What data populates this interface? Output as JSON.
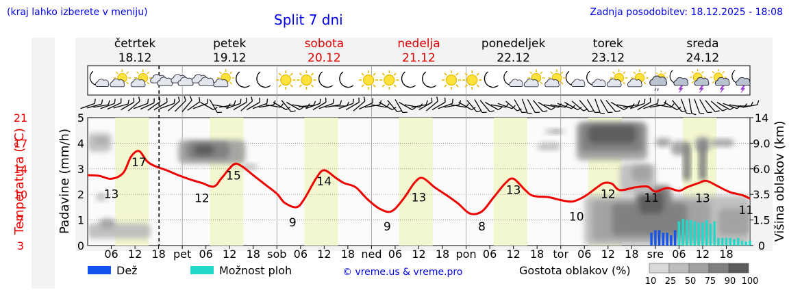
{
  "header": {
    "hint": "(kraj lahko izberete v meniju)",
    "title": "Split 7 dni",
    "updated": "Zadnja posodobitev: 18.12.2025 - 18:08"
  },
  "colors": {
    "weekday": "#000000",
    "weekend": "#dd0000",
    "temp_line": "#ee0000",
    "rain": "#1155ee",
    "shower": "#22d8c8",
    "daylight": "#f3f7cf"
  },
  "days": [
    {
      "name": "četrtek",
      "date": "18.12",
      "weekend": false
    },
    {
      "name": "petek",
      "date": "19.12",
      "weekend": false
    },
    {
      "name": "sobota",
      "date": "20.12",
      "weekend": true
    },
    {
      "name": "nedelja",
      "date": "21.12",
      "weekend": true
    },
    {
      "name": "ponedeljek",
      "date": "22.12",
      "weekend": false
    },
    {
      "name": "torek",
      "date": "23.12",
      "weekend": false
    },
    {
      "name": "sreda",
      "date": "24.12",
      "weekend": false
    }
  ],
  "icons": [
    "moon-cloud",
    "sun-cloud",
    "sun-cloud",
    "cloudy",
    "cloudy",
    "cloudy",
    "sun-cloud",
    "moon",
    "moon",
    "sun",
    "sun",
    "moon",
    "moon",
    "sun",
    "sun",
    "moon",
    "moon",
    "sun",
    "sun",
    "moon",
    "moon-cloud",
    "sun-cloud",
    "sun-cloud",
    "moon-cloud",
    "moon-cloud",
    "sun-cloud",
    "sun-cloud",
    "rain-cloud",
    "storm-moon",
    "storm-sun",
    "storm-sun",
    "storm-moon"
  ],
  "chart_data": {
    "type": "line",
    "title": "Split 7 dni",
    "x_unit": "hours since 18.12 00:00",
    "x_range": [
      0,
      168
    ],
    "now_hour": 18.1,
    "xticks": [
      {
        "h": 6,
        "label": "06"
      },
      {
        "h": 12,
        "label": "12"
      },
      {
        "h": 18,
        "label": "18"
      },
      {
        "h": 24,
        "label": "pet"
      },
      {
        "h": 30,
        "label": "06"
      },
      {
        "h": 36,
        "label": "12"
      },
      {
        "h": 42,
        "label": "18"
      },
      {
        "h": 48,
        "label": "sob"
      },
      {
        "h": 54,
        "label": "06"
      },
      {
        "h": 60,
        "label": "12"
      },
      {
        "h": 66,
        "label": "18"
      },
      {
        "h": 72,
        "label": "ned"
      },
      {
        "h": 78,
        "label": "06"
      },
      {
        "h": 84,
        "label": "12"
      },
      {
        "h": 90,
        "label": "18"
      },
      {
        "h": 96,
        "label": "pon"
      },
      {
        "h": 102,
        "label": "06"
      },
      {
        "h": 108,
        "label": "12"
      },
      {
        "h": 114,
        "label": "18"
      },
      {
        "h": 120,
        "label": "tor"
      },
      {
        "h": 126,
        "label": "06"
      },
      {
        "h": 132,
        "label": "12"
      },
      {
        "h": 138,
        "label": "18"
      },
      {
        "h": 144,
        "label": "sre"
      },
      {
        "h": 150,
        "label": "06"
      },
      {
        "h": 156,
        "label": "12"
      },
      {
        "h": 162,
        "label": "18"
      }
    ],
    "daylight_hours": [
      [
        7,
        15.5
      ],
      [
        31,
        39.5
      ],
      [
        55,
        63.5
      ],
      [
        79,
        87.5
      ],
      [
        103,
        111.5
      ],
      [
        127,
        135.5
      ],
      [
        151,
        159.5
      ]
    ],
    "temperature": {
      "label": "Temperatura (°C)",
      "ticks": [
        "3",
        "7",
        "10",
        "14",
        "17",
        "21"
      ],
      "range": [
        3,
        21
      ],
      "points": [
        [
          0,
          12.9
        ],
        [
          3,
          12.8
        ],
        [
          6,
          12.4
        ],
        [
          9,
          13.2
        ],
        [
          11,
          15.5
        ],
        [
          13,
          16.3
        ],
        [
          15,
          14.9
        ],
        [
          17,
          14.2
        ],
        [
          20,
          13.6
        ],
        [
          23,
          12.9
        ],
        [
          26,
          12.3
        ],
        [
          29,
          11.8
        ],
        [
          32,
          11.3
        ],
        [
          34,
          12.5
        ],
        [
          37,
          14.4
        ],
        [
          39,
          14.2
        ],
        [
          42,
          12.9
        ],
        [
          45,
          11.6
        ],
        [
          48,
          10.3
        ],
        [
          50,
          9.0
        ],
        [
          53,
          8.4
        ],
        [
          55,
          9.6
        ],
        [
          58,
          12.5
        ],
        [
          60,
          13.6
        ],
        [
          63,
          12.5
        ],
        [
          65,
          11.8
        ],
        [
          68,
          11.2
        ],
        [
          71,
          9.5
        ],
        [
          74,
          8.2
        ],
        [
          77,
          7.8
        ],
        [
          80,
          9.5
        ],
        [
          83,
          11.9
        ],
        [
          85,
          12.5
        ],
        [
          88,
          11.2
        ],
        [
          91,
          10.1
        ],
        [
          94,
          8.9
        ],
        [
          97,
          7.5
        ],
        [
          100,
          7.8
        ],
        [
          103,
          9.8
        ],
        [
          106,
          11.8
        ],
        [
          108,
          12.4
        ],
        [
          111,
          10.8
        ],
        [
          113,
          10.0
        ],
        [
          117,
          9.8
        ],
        [
          120,
          9.4
        ],
        [
          123,
          9.2
        ],
        [
          126,
          9.9
        ],
        [
          129,
          11.1
        ],
        [
          131,
          11.8
        ],
        [
          133,
          11.7
        ],
        [
          135,
          10.8
        ],
        [
          139,
          11.2
        ],
        [
          142,
          11.3
        ],
        [
          144,
          10.6
        ],
        [
          147,
          11.1
        ],
        [
          150,
          10.7
        ],
        [
          152,
          11.2
        ],
        [
          155,
          11.8
        ],
        [
          157,
          12.1
        ],
        [
          160,
          11.3
        ],
        [
          163,
          10.5
        ],
        [
          166,
          10.1
        ],
        [
          168,
          9.6
        ]
      ],
      "labels": [
        {
          "h": 6,
          "value": "13"
        },
        {
          "h": 13,
          "value": "17"
        },
        {
          "h": 29,
          "value": "12"
        },
        {
          "h": 37,
          "value": "15"
        },
        {
          "h": 52,
          "value": "9"
        },
        {
          "h": 60,
          "value": "14"
        },
        {
          "h": 76,
          "value": "9"
        },
        {
          "h": 84,
          "value": "13"
        },
        {
          "h": 100,
          "value": "8"
        },
        {
          "h": 108,
          "value": "13"
        },
        {
          "h": 124,
          "value": "10"
        },
        {
          "h": 132,
          "value": "12"
        },
        {
          "h": 143,
          "value": "11"
        },
        {
          "h": 156,
          "value": "13"
        },
        {
          "h": 167,
          "value": "11"
        }
      ]
    },
    "precipitation": {
      "label": "Padavine (mm/h)",
      "ticks": [
        "0",
        "1",
        "2",
        "3",
        "4",
        "5"
      ],
      "range": [
        0,
        5
      ],
      "rain": [
        [
          143,
          0.5
        ],
        [
          144,
          0.6
        ],
        [
          145,
          0.6
        ],
        [
          146,
          0.5
        ],
        [
          147,
          0.5
        ],
        [
          148,
          0.4
        ],
        [
          149,
          0.6
        ]
      ],
      "showers": [
        [
          150,
          0.95
        ],
        [
          151,
          1.05
        ],
        [
          152,
          1.0
        ],
        [
          153,
          1.0
        ],
        [
          154,
          0.95
        ],
        [
          155,
          0.9
        ],
        [
          156,
          0.9
        ],
        [
          157,
          1.0
        ],
        [
          158,
          0.85
        ],
        [
          159,
          0.95
        ],
        [
          160,
          0.3
        ],
        [
          161,
          0.3
        ],
        [
          162,
          0.3
        ],
        [
          163,
          0.3
        ],
        [
          164,
          0.25
        ],
        [
          165,
          0.3
        ],
        [
          166,
          0.2
        ],
        [
          167,
          0.15
        ],
        [
          168,
          0.2
        ]
      ]
    },
    "cloud_height": {
      "label": "Višina oblakov (km)",
      "ticks": [
        "0",
        "1.5",
        "3.5",
        "6.0",
        "9.0",
        "14"
      ]
    },
    "cloud_density": {
      "label": "Gostota oblakov (%)",
      "levels": [
        "10",
        "25",
        "50",
        "75",
        "90",
        "100"
      ],
      "colors": [
        "#d8d8d8",
        "#bdbdbd",
        "#a2a2a2",
        "#808080",
        "#5c5c5c"
      ],
      "blobs": [
        {
          "h": [
            0,
            6
          ],
          "km": [
            8.0,
            11.0
          ],
          "level": 1
        },
        {
          "h": [
            2,
            5
          ],
          "km": [
            9.0,
            10.0
          ],
          "level": 2
        },
        {
          "h": [
            23,
            40
          ],
          "km": [
            6.6,
            9.6
          ],
          "level": 2
        },
        {
          "h": [
            25,
            36
          ],
          "km": [
            7.2,
            9.2
          ],
          "level": 3
        },
        {
          "h": [
            27,
            32
          ],
          "km": [
            7.6,
            8.8
          ],
          "level": 4
        },
        {
          "h": [
            39,
            43
          ],
          "km": [
            5.9,
            6.6
          ],
          "level": 1
        },
        {
          "h": [
            0,
            16
          ],
          "km": [
            0.4,
            1.3
          ],
          "level": 1
        },
        {
          "h": [
            3,
            7
          ],
          "km": [
            1.0,
            1.6
          ],
          "level": 2
        },
        {
          "h": [
            2,
            5
          ],
          "km": [
            3.0,
            3.6
          ],
          "level": 1
        },
        {
          "h": [
            116,
            121
          ],
          "km": [
            10.8,
            11.8
          ],
          "level": 1
        },
        {
          "h": [
            118,
            120
          ],
          "km": [
            11.0,
            11.6
          ],
          "level": 2
        },
        {
          "h": [
            114,
            120
          ],
          "km": [
            8.2,
            9.1
          ],
          "level": 1
        },
        {
          "h": [
            124,
            142
          ],
          "km": [
            7.0,
            13.2
          ],
          "level": 2
        },
        {
          "h": [
            125,
            141
          ],
          "km": [
            8.0,
            12.8
          ],
          "level": 3
        },
        {
          "h": [
            127,
            139
          ],
          "km": [
            9.0,
            12.4
          ],
          "level": 4
        },
        {
          "h": [
            144,
            148
          ],
          "km": [
            8.6,
            10.0
          ],
          "level": 2
        },
        {
          "h": [
            148,
            152
          ],
          "km": [
            7.6,
            9.4
          ],
          "level": 2
        },
        {
          "h": [
            151,
            153
          ],
          "km": [
            4.8,
            9.2
          ],
          "level": 3
        },
        {
          "h": [
            154,
            158
          ],
          "km": [
            8.0,
            10.2
          ],
          "level": 2
        },
        {
          "h": [
            155,
            157
          ],
          "km": [
            4.8,
            9.6
          ],
          "level": 3
        },
        {
          "h": [
            158,
            164
          ],
          "km": [
            8.6,
            9.8
          ],
          "level": 2
        },
        {
          "h": [
            126,
            168
          ],
          "km": [
            0.0,
            3.4
          ],
          "level": 1
        },
        {
          "h": [
            128,
            158
          ],
          "km": [
            0.3,
            3.0
          ],
          "level": 2
        },
        {
          "h": [
            133,
            152
          ],
          "km": [
            0.6,
            2.8
          ],
          "level": 3
        },
        {
          "h": [
            139,
            148
          ],
          "km": [
            1.2,
            4.4
          ],
          "level": 3
        },
        {
          "h": [
            140,
            146
          ],
          "km": [
            2.0,
            3.8
          ],
          "level": 4
        },
        {
          "h": [
            160,
            168
          ],
          "km": [
            0.6,
            2.4
          ],
          "level": 2
        },
        {
          "h": [
            135,
            144
          ],
          "km": [
            3.5,
            6.6
          ],
          "level": 1
        },
        {
          "h": [
            138,
            143
          ],
          "km": [
            4.8,
            6.4
          ],
          "level": 2
        }
      ]
    },
    "wind_degrees": [
      250,
      255,
      260,
      250,
      245,
      255,
      240,
      230,
      250,
      245,
      235,
      240,
      250,
      230,
      225,
      220,
      235,
      250,
      300,
      330,
      280,
      260,
      250,
      240,
      230,
      240,
      250,
      260,
      280,
      300,
      320,
      300,
      280,
      265,
      250,
      240,
      250,
      260,
      270,
      250,
      240,
      230,
      245,
      260,
      280,
      300,
      320,
      330,
      300,
      280,
      260,
      240,
      230,
      240,
      250,
      260,
      280,
      300,
      320,
      330,
      320,
      300,
      280,
      290,
      310,
      330,
      340,
      330,
      320,
      300,
      280,
      280,
      290,
      300,
      310,
      320,
      330,
      340,
      330,
      320,
      300,
      280,
      260,
      250,
      240,
      250,
      260,
      280,
      300,
      320,
      340,
      350,
      340,
      330,
      320,
      310,
      300,
      290,
      280,
      270,
      260
    ]
  },
  "legend": {
    "rain": "Dež",
    "shower": "Možnost ploh",
    "credit": "© vreme.us & vreme.pro",
    "density_label": "Gostota oblakov (%)"
  }
}
